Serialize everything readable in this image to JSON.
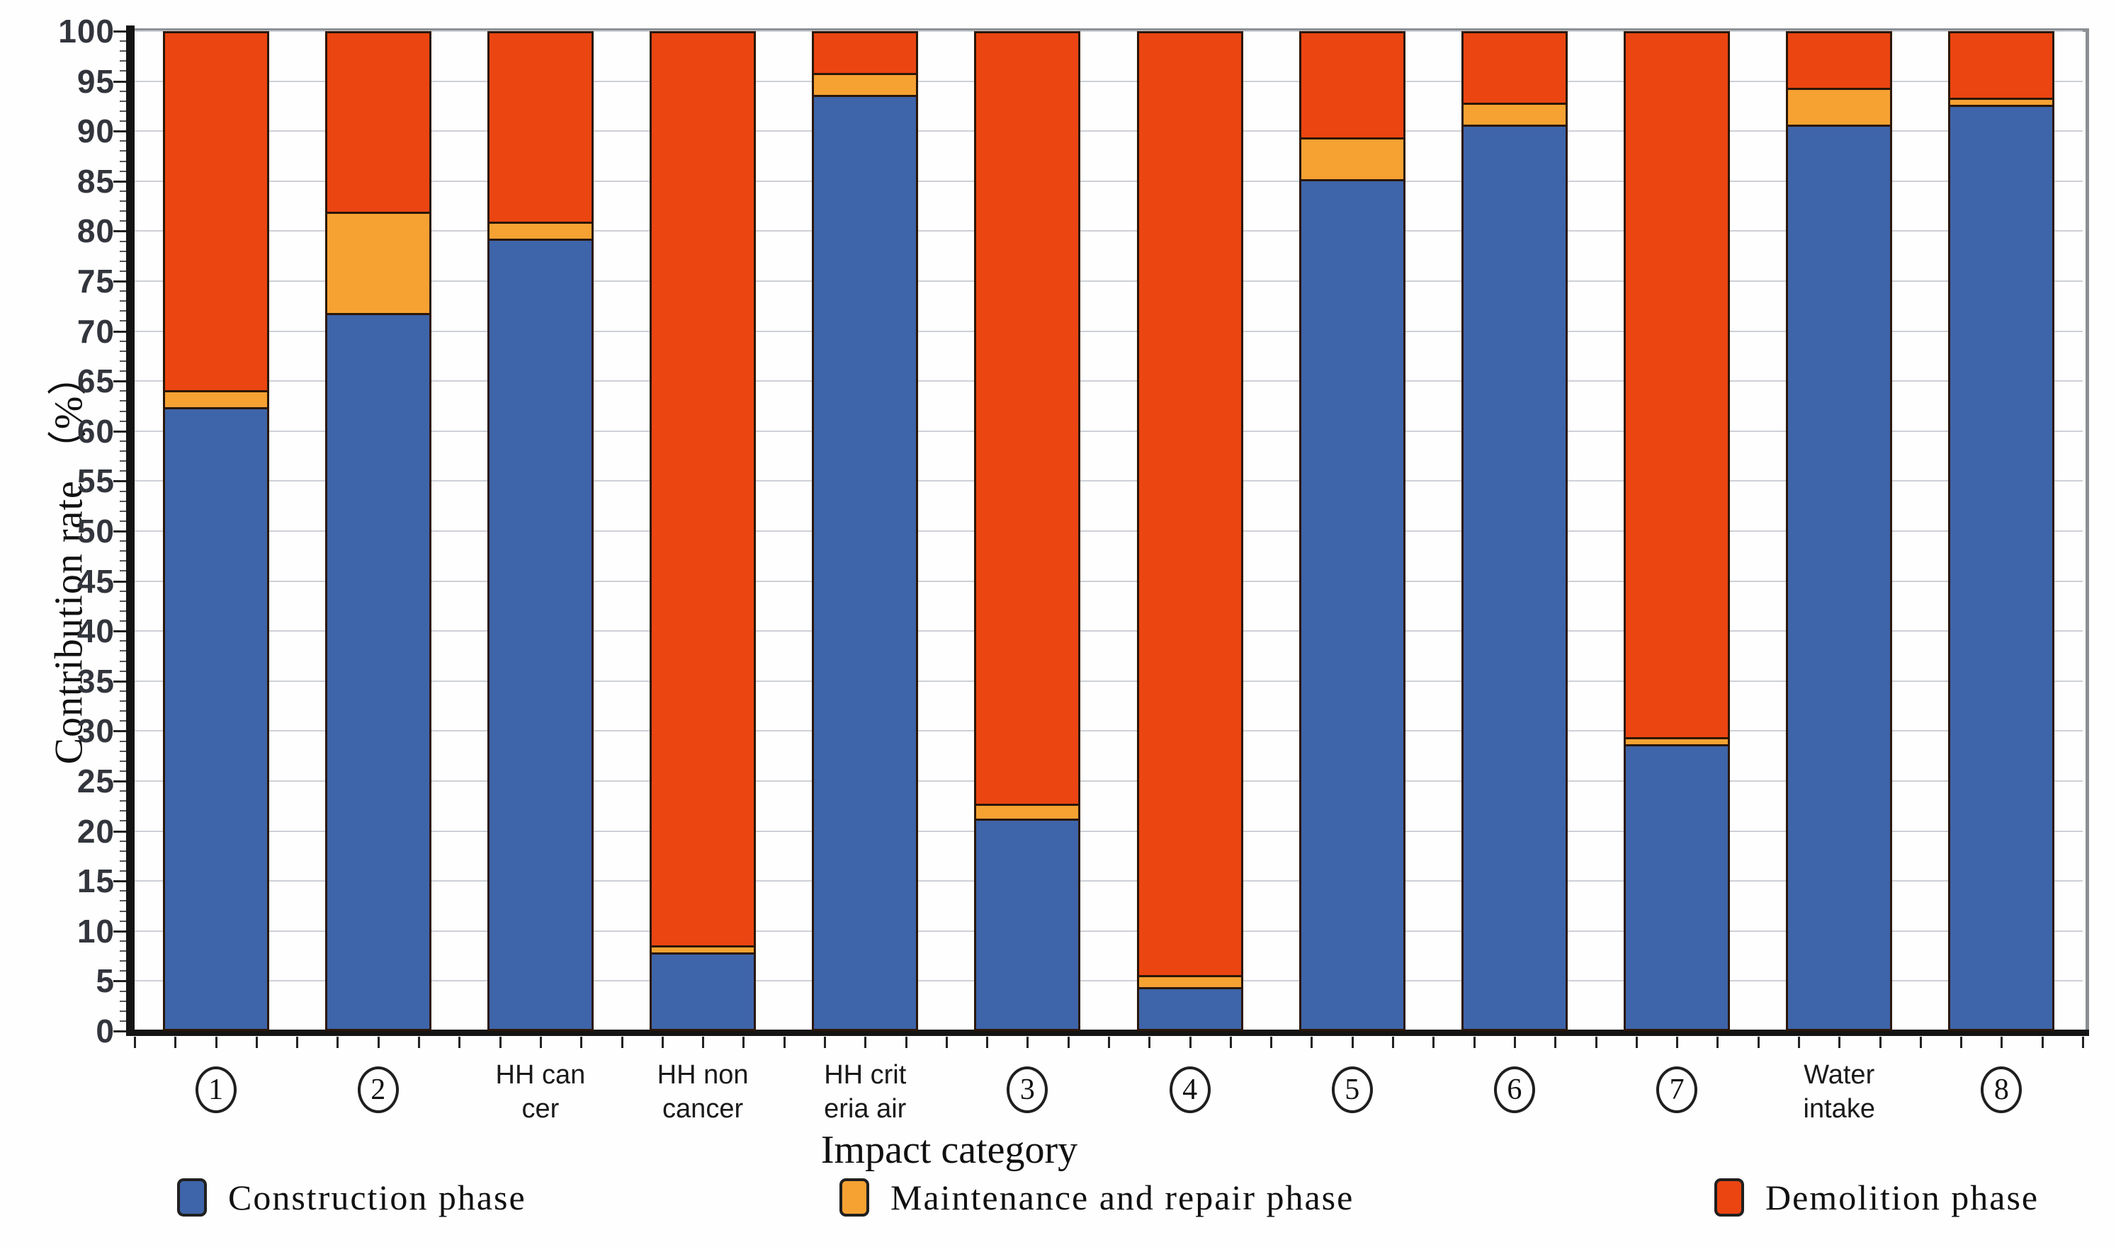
{
  "chart_data": {
    "type": "bar",
    "stacked": true,
    "title": "",
    "xlabel": "Impact category",
    "ylabel": "Contribution rate （%）",
    "ylim": [
      0,
      100
    ],
    "ytick_step": 5,
    "y_minor_tick_step": 1,
    "grid": "horizontal gridlines every 5%",
    "legend_position": "bottom",
    "categories": [
      {
        "circled": true,
        "label": "1"
      },
      {
        "circled": true,
        "label": "2"
      },
      {
        "circled": false,
        "lines": [
          "HH can",
          "cer"
        ]
      },
      {
        "circled": false,
        "lines": [
          "HH non",
          "cancer"
        ]
      },
      {
        "circled": false,
        "lines": [
          "HH crit",
          "eria air"
        ]
      },
      {
        "circled": true,
        "label": "3"
      },
      {
        "circled": true,
        "label": "4"
      },
      {
        "circled": true,
        "label": "5"
      },
      {
        "circled": true,
        "label": "6"
      },
      {
        "circled": true,
        "label": "7"
      },
      {
        "circled": false,
        "lines": [
          "Water",
          "intake"
        ]
      },
      {
        "circled": true,
        "label": "8"
      }
    ],
    "series": [
      {
        "name": "Construction phase",
        "color": "#3E64A9",
        "values": [
          62.5,
          72.0,
          79.5,
          7.5,
          94.0,
          21.0,
          4.0,
          85.5,
          91.0,
          28.5,
          91.0,
          93.0
        ]
      },
      {
        "name": "Maintenance and repair phase",
        "color": "#F6A233",
        "values": [
          1.5,
          10.0,
          1.5,
          0.5,
          2.0,
          1.3,
          1.0,
          4.0,
          2.0,
          0.5,
          3.5,
          0.5
        ]
      },
      {
        "name": "Demolition phase",
        "color": "#EB4512",
        "values": [
          36.0,
          18.0,
          19.0,
          92.0,
          4.0,
          77.7,
          95.0,
          10.5,
          7.0,
          71.0,
          5.5,
          6.5
        ]
      }
    ]
  },
  "colors": {
    "construction_blue": "#3E64A9",
    "maintenance_orange": "#F6A233",
    "demolition_red": "#EB4512",
    "bar_border": "#2b1708",
    "gridline": "#cdd0d6",
    "axis": "#141414",
    "frame": "#8c9094"
  }
}
